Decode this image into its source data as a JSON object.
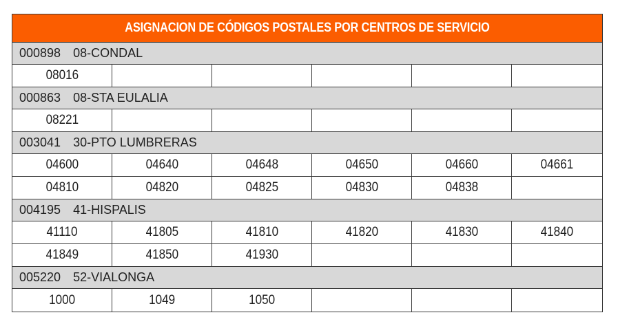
{
  "title": "ASIGNACION DE CÓDIGOS POSTALES POR CENTROS DE SERVICIO",
  "groups": [
    {
      "code": "000898",
      "name": "08-CONDAL",
      "rows": [
        [
          "08016",
          "",
          "",
          "",
          "",
          ""
        ]
      ]
    },
    {
      "code": "000863",
      "name": "08-STA EULALIA",
      "rows": [
        [
          "08221",
          "",
          "",
          "",
          "",
          ""
        ]
      ]
    },
    {
      "code": "003041",
      "name": "30-PTO LUMBRERAS",
      "rows": [
        [
          "04600",
          "04640",
          "04648",
          "04650",
          "04660",
          "04661"
        ],
        [
          "04810",
          "04820",
          "04825",
          "04830",
          "04838",
          ""
        ]
      ]
    },
    {
      "code": "004195",
      "name": "41-HISPALIS",
      "rows": [
        [
          "41110",
          "41805",
          "41810",
          "41820",
          "41830",
          "41840"
        ],
        [
          "41849",
          "41850",
          "41930",
          "",
          "",
          ""
        ]
      ]
    },
    {
      "code": "005220",
      "name": "52-VIALONGA",
      "rows": [
        [
          "1000",
          "1049",
          "1050",
          "",
          "",
          ""
        ]
      ]
    }
  ]
}
